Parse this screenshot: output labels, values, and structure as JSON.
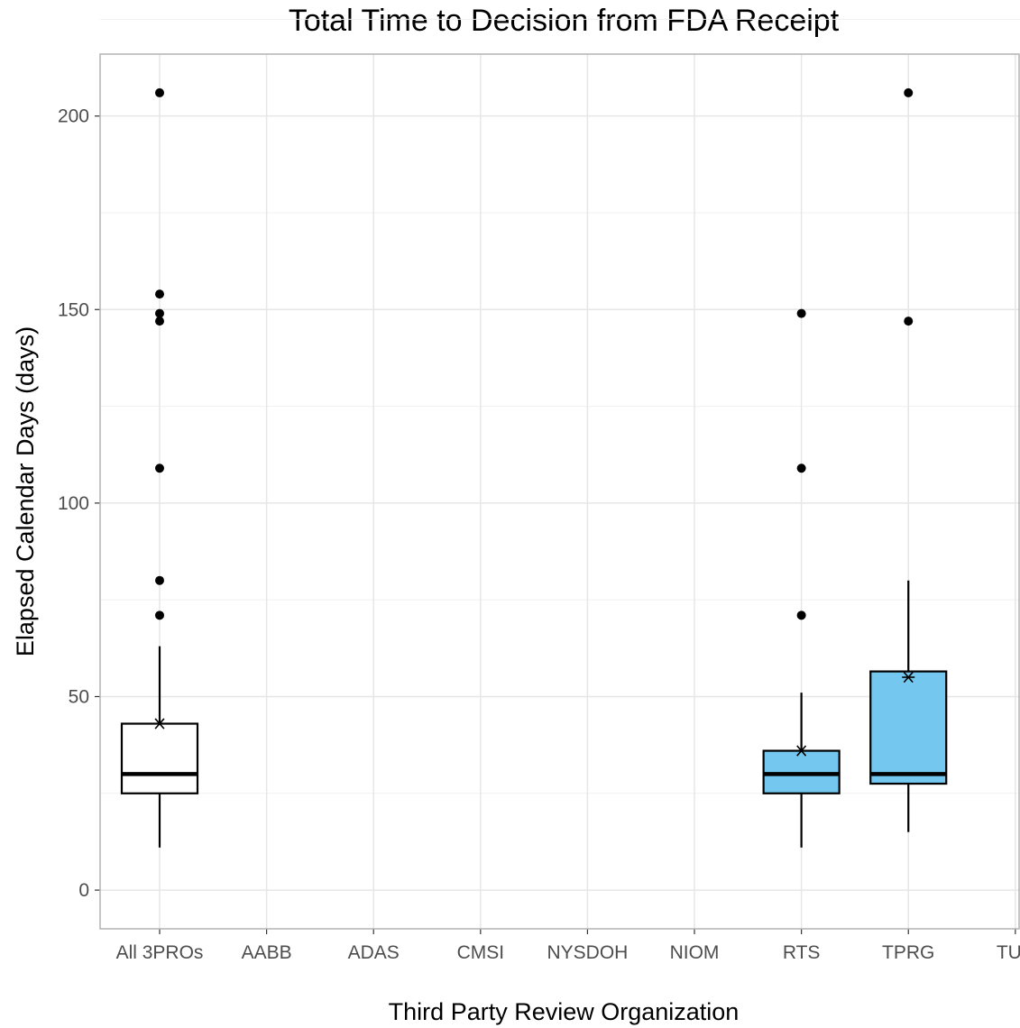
{
  "chart_data": {
    "type": "box",
    "title": "Total Time to Decision from FDA Receipt",
    "xlabel": "Third Party Review Organization",
    "ylabel": "Elapsed Calendar Days (days)",
    "ylim": [
      -10,
      216
    ],
    "yticks": [
      0,
      50,
      100,
      150,
      200
    ],
    "grid": true,
    "categories": [
      "All 3PROs",
      "AABB",
      "ADAS",
      "CMSI",
      "NYSDOH",
      "NIOM",
      "RTS",
      "TPRG",
      "TUV"
    ],
    "boxes": [
      {
        "category": "All 3PROs",
        "q1": 25,
        "median": 30,
        "q3": 43,
        "whisker_low": 11,
        "whisker_high": 63,
        "mean": 43,
        "outliers": [
          71,
          80,
          109,
          147,
          149,
          154,
          206
        ],
        "fill": "#ffffff"
      },
      {
        "category": "RTS",
        "q1": 25,
        "median": 30,
        "q3": 36,
        "whisker_low": 11,
        "whisker_high": 51,
        "mean": 36,
        "outliers": [
          71,
          109,
          149
        ],
        "fill": "#74c8ef"
      },
      {
        "category": "TPRG",
        "q1": 27.5,
        "median": 30,
        "q3": 56.5,
        "whisker_low": 15,
        "whisker_high": 80,
        "mean": 55,
        "outliers": [
          147,
          206
        ],
        "fill": "#74c8ef"
      }
    ]
  }
}
